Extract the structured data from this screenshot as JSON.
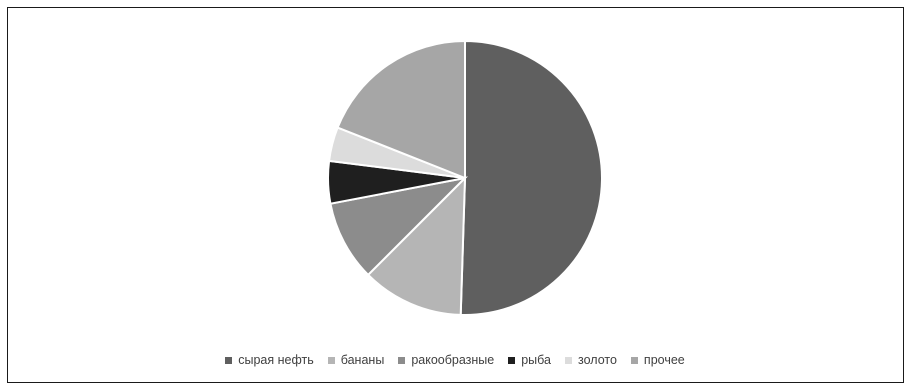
{
  "chart_data": {
    "type": "pie",
    "title": "",
    "legend_position": "bottom",
    "slices": [
      {
        "label": "сырая нефть",
        "value": 50.5,
        "color": "#5f5f5f"
      },
      {
        "label": "бананы",
        "value": 12.0,
        "color": "#b5b5b5"
      },
      {
        "label": "ракообразные",
        "value": 9.5,
        "color": "#8c8c8c"
      },
      {
        "label": "рыба",
        "value": 5.0,
        "color": "#1f1f1f"
      },
      {
        "label": "золото",
        "value": 4.0,
        "color": "#dcdcdc"
      },
      {
        "label": "прочее",
        "value": 19.0,
        "color": "#a6a6a6"
      }
    ]
  }
}
